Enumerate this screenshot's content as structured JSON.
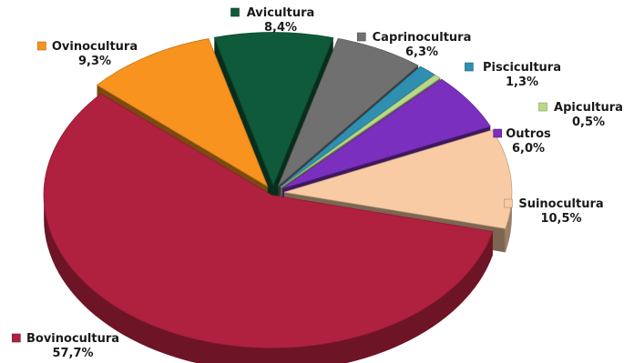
{
  "chart_data": {
    "type": "pie",
    "style": "3d-exploded",
    "slices": [
      {
        "name": "Avicultura",
        "value": 8.4,
        "label": "8,4%",
        "color": "#0F5A3A"
      },
      {
        "name": "Caprinocultura",
        "value": 6.3,
        "label": "6,3%",
        "color": "#707070"
      },
      {
        "name": "Piscicultura",
        "value": 1.3,
        "label": "1,3%",
        "color": "#2E8FB0"
      },
      {
        "name": "Apicultura",
        "value": 0.5,
        "label": "0,5%",
        "color": "#B9D98A"
      },
      {
        "name": "Outros",
        "value": 6.0,
        "label": "6,0%",
        "color": "#7B2FBE"
      },
      {
        "name": "Suinocultura",
        "value": 10.5,
        "label": "10,5%",
        "color": "#F8CBA4"
      },
      {
        "name": "Bovinocultura",
        "value": 57.7,
        "label": "57,7%",
        "color": "#B0203F"
      },
      {
        "name": "Ovinocultura",
        "value": 9.3,
        "label": "9,3%",
        "color": "#F7931E"
      }
    ],
    "legend_placement": "outside-labels"
  }
}
